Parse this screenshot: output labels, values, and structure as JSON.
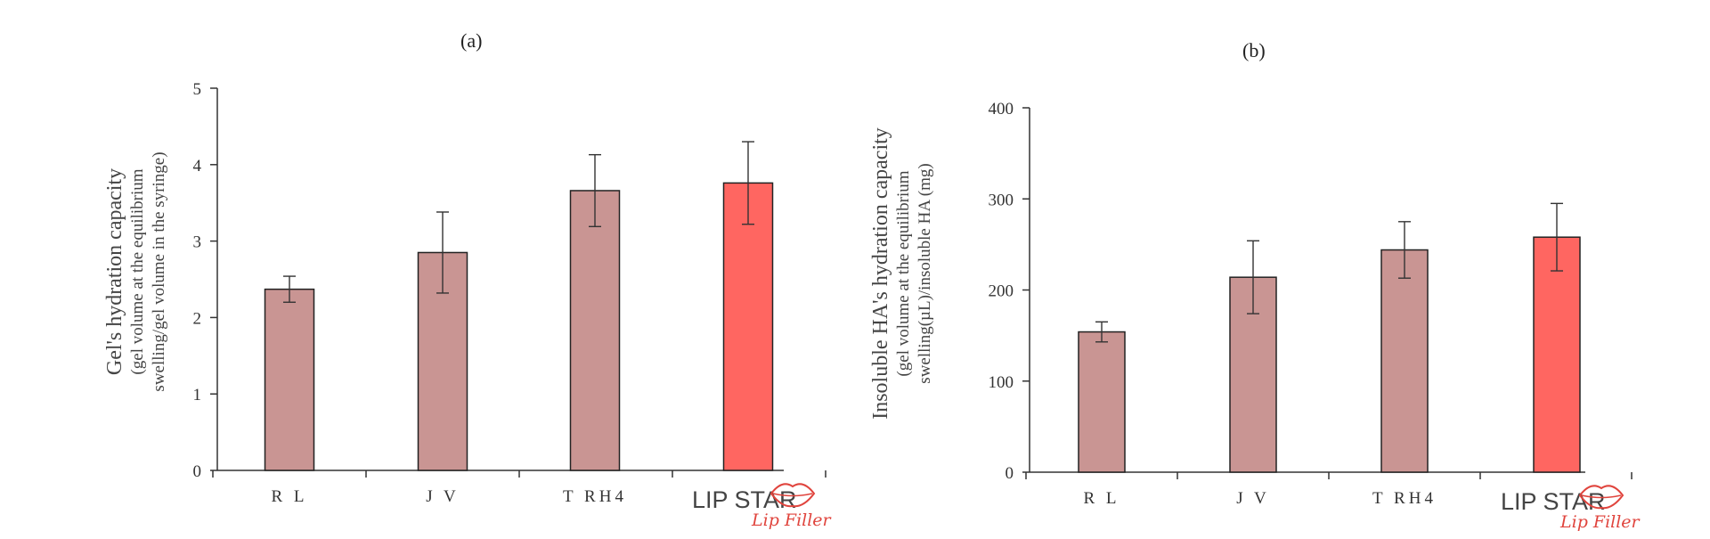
{
  "charts": [
    {
      "panel": "(a)",
      "ylabel_main": "Gel's  hydration  capacity",
      "ylabel_sub_1": "(gel volume at the equilibrium",
      "ylabel_sub_2": "swelling/gel volume in the syringe)"
    },
    {
      "panel": "(b)",
      "ylabel_main": "Insoluble  HA's  hydration  capacity",
      "ylabel_sub_1": "(gel volume at the equilibrium",
      "ylabel_sub_2": "swelling(µL)/insoluble HA (mg)"
    }
  ],
  "logo": {
    "word": "LIP STAR",
    "script": "Lip Filler"
  },
  "colors": {
    "bar": "#c99593",
    "highlight": "#ff6661",
    "axis": "#333333",
    "logo_red": "#e0443d"
  },
  "chart_data": [
    {
      "type": "bar",
      "title": "(a)",
      "categories": [
        "R L",
        "J V",
        "T RH4",
        "LIP STAR"
      ],
      "values": [
        2.37,
        2.85,
        3.66,
        3.76
      ],
      "errors": [
        0.17,
        0.53,
        0.47,
        0.54
      ],
      "highlight_index": 3,
      "ylim": [
        0,
        5
      ],
      "yticks": [
        0,
        1,
        2,
        3,
        4,
        5
      ],
      "ylabel": "Gel's hydration capacity (gel volume at the equilibrium swelling/gel volume in the syringe)"
    },
    {
      "type": "bar",
      "title": "(b)",
      "categories": [
        "R L",
        "J V",
        "T RH4",
        "LIP STAR"
      ],
      "values": [
        154,
        214,
        244,
        258
      ],
      "errors": [
        11,
        40,
        31,
        37
      ],
      "highlight_index": 3,
      "ylim": [
        0,
        400
      ],
      "yticks": [
        0,
        100,
        200,
        300,
        400
      ],
      "ylabel": "Insoluble HA's hydration capacity (gel volume at the equilibrium swelling(µL)/insoluble HA (mg)"
    }
  ]
}
